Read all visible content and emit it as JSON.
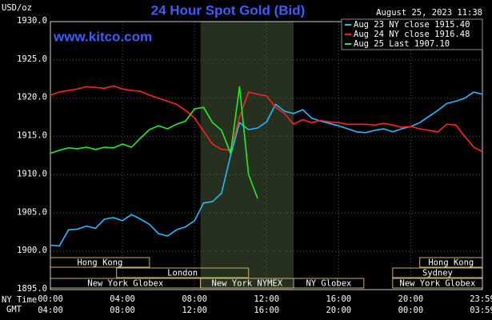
{
  "chart_data": {
    "type": "line",
    "title": "24 Hour Spot Gold (Bid)",
    "timestamp": "August 25, 2023 11:38",
    "watermark": "www.kitco.com",
    "y_label": "USD/oz",
    "x_label": "NY Time",
    "x2_label": "GMT",
    "x": [
      0,
      0.5,
      1,
      1.5,
      2,
      2.5,
      3,
      3.5,
      4,
      4.5,
      5,
      5.5,
      6,
      6.5,
      7,
      7.5,
      8,
      8.5,
      9,
      9.5,
      10,
      10.5,
      11,
      11.5,
      12,
      12.5,
      13,
      13.5,
      14,
      14.5,
      15,
      15.5,
      16,
      16.5,
      17,
      17.5,
      18,
      18.5,
      19,
      19.5,
      20,
      20.5,
      21,
      21.5,
      22,
      22.5,
      23,
      23.5,
      23.98
    ],
    "series": [
      {
        "name": "Aug 23 NY close 1915.40",
        "color": "#22bbff",
        "values": [
          1900.8,
          1900.7,
          1902.8,
          1902.9,
          1903.3,
          1903.0,
          1904.2,
          1904.4,
          1904.0,
          1904.8,
          1904.2,
          1903.5,
          1902.3,
          1902.0,
          1902.8,
          1903.2,
          1904.0,
          1906.3,
          1906.5,
          1907.6,
          1912.5,
          1916.8,
          1915.9,
          1916.1,
          1916.9,
          1919.2,
          1918.3,
          1918.0,
          1918.5,
          1917.4,
          1917.0,
          1916.7,
          1916.4,
          1916.0,
          1915.6,
          1915.5,
          1915.8,
          1916.0,
          1915.6,
          1916.0,
          1916.3,
          1916.8,
          1917.6,
          1918.4,
          1919.3,
          1919.6,
          1920.0,
          1920.8,
          1920.5
        ]
      },
      {
        "name": "Aug 24 NY close 1916.48",
        "color": "#ff2020",
        "values": [
          1920.4,
          1920.8,
          1921.0,
          1921.2,
          1921.5,
          1921.4,
          1921.3,
          1921.6,
          1921.2,
          1921.0,
          1920.9,
          1920.4,
          1920.0,
          1919.6,
          1919.2,
          1918.4,
          1917.4,
          1915.7,
          1914.0,
          1913.3,
          1913.2,
          1917.5,
          1920.8,
          1920.5,
          1920.3,
          1918.8,
          1918.0,
          1916.6,
          1917.2,
          1916.8,
          1917.1,
          1916.9,
          1916.8,
          1916.6,
          1916.6,
          1916.6,
          1916.5,
          1916.7,
          1916.5,
          1916.2,
          1916.3,
          1916.0,
          1915.8,
          1915.6,
          1916.6,
          1916.5,
          1915.0,
          1913.6,
          1913.0
        ]
      },
      {
        "name": "Aug 25 Last 1907.10",
        "color": "#22ee22",
        "values": [
          1912.8,
          1913.2,
          1913.5,
          1913.4,
          1913.6,
          1913.3,
          1913.6,
          1913.5,
          1914.0,
          1913.6,
          1914.8,
          1915.9,
          1916.4,
          1916.0,
          1916.6,
          1917.0,
          1918.6,
          1918.8,
          1916.8,
          1915.8,
          1912.8,
          1921.5,
          1910.0,
          1906.9,
          null,
          null,
          null,
          null,
          null,
          null,
          null,
          null,
          null,
          null,
          null,
          null,
          null,
          null,
          null,
          null,
          null,
          null,
          null,
          null,
          null,
          null,
          null,
          null,
          null
        ]
      }
    ],
    "xlim": [
      0,
      23.98
    ],
    "xticks": [
      {
        "value": 0,
        "label": "00:00"
      },
      {
        "value": 4,
        "label": "04:00"
      },
      {
        "value": 8,
        "label": "08:00"
      },
      {
        "value": 12,
        "label": "12:00"
      },
      {
        "value": 16,
        "label": "16:00"
      },
      {
        "value": 20,
        "label": "20:00"
      },
      {
        "value": 23.98,
        "label": "23:59"
      }
    ],
    "x2tick_labels": [
      "04:00",
      "08:00",
      "12:00",
      "16:00",
      "20:00",
      "00:00",
      "03:59"
    ],
    "ylim": [
      1895,
      1930
    ],
    "yticks": [
      {
        "value": 1895,
        "label": "1895.0"
      },
      {
        "value": 1900,
        "label": "1900.0"
      },
      {
        "value": 1905,
        "label": "1905.0"
      },
      {
        "value": 1910,
        "label": "1910.0"
      },
      {
        "value": 1915,
        "label": "1915.0"
      },
      {
        "value": 1920,
        "label": "1920.0"
      },
      {
        "value": 1925,
        "label": "1925.0"
      },
      {
        "value": 1930,
        "label": "1930.0"
      }
    ],
    "grid": true,
    "shaded_range": [
      8.33,
      13.5
    ],
    "sessions": [
      [
        {
          "name": "Hong Kong",
          "start": 0,
          "end": 5.5
        },
        {
          "name": "Hong Kong",
          "start": 20.5,
          "end": 23.98
        }
      ],
      [
        {
          "name": "London",
          "start": 3.67,
          "end": 11
        },
        {
          "name": "Sydney",
          "start": 19,
          "end": 23.98
        }
      ],
      [
        {
          "name": "New York Globex",
          "start": 0,
          "end": 8.33
        },
        {
          "name": "New York NYMEX",
          "start": 8.33,
          "end": 13.5
        },
        {
          "name": "NY Globex",
          "start": 13.5,
          "end": 17.4
        },
        {
          "name": "New York Globex",
          "start": 19,
          "end": 23.98
        }
      ]
    ]
  }
}
